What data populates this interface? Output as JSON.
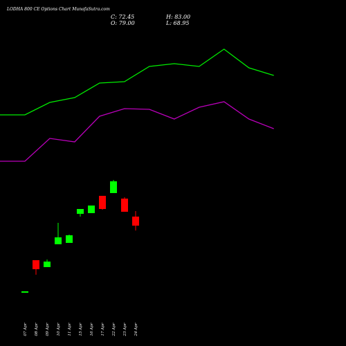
{
  "chart_data": [
    {
      "type": "candlestick",
      "title": "LODHA 800 CE Options Chart MunafaSutra.com",
      "annotations": [
        "C: 72.45",
        "H: 83.00",
        "O: 79.00",
        "L: 68.95"
      ],
      "categories": [
        "07 Apr",
        "08 Apr",
        "09 Apr",
        "10 Apr",
        "11 Apr",
        "15 Apr",
        "16 Apr",
        "17 Apr",
        "22 Apr",
        "23 Apr",
        "24 Apr"
      ],
      "open": [
        25,
        47.5,
        42.5,
        59,
        60,
        81,
        81.5,
        94,
        96,
        92,
        79
      ],
      "high": [
        25,
        47.5,
        48,
        74.5,
        66,
        84.5,
        87,
        94,
        105.5,
        93,
        83
      ],
      "low": [
        25,
        37,
        42.5,
        59,
        60,
        79,
        81.5,
        84,
        96,
        82.5,
        68.95
      ],
      "close": [
        25,
        41,
        46.5,
        64,
        65.5,
        84.5,
        87,
        84.5,
        104.5,
        82.5,
        72.45
      ],
      "up_color": "#00ff00",
      "down_color": "#ff0000",
      "ylim": [
        -14.5,
        235.5
      ]
    },
    {
      "type": "line",
      "x": [
        0,
        1,
        2,
        3,
        4,
        5,
        6,
        7,
        8,
        9,
        10,
        11
      ],
      "xlim": [
        0,
        13.9
      ],
      "ylim": [
        -14.5,
        235.5
      ],
      "series": [
        {
          "color": "#00ee00",
          "values": [
            152.5,
            152.5,
            161.5,
            165,
            175.5,
            176.5,
            187.5,
            189.5,
            187.5,
            200,
            186.5,
            181
          ]
        },
        {
          "color": "#bb00bb",
          "values": [
            119,
            119,
            135.5,
            133,
            151.5,
            157,
            156.5,
            149.5,
            158,
            162,
            149.5,
            142.5
          ]
        }
      ]
    }
  ]
}
